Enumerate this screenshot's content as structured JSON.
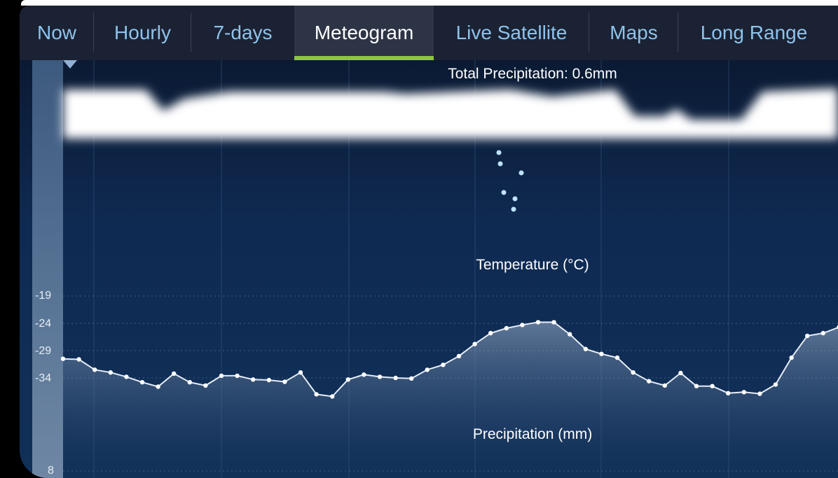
{
  "tabs": [
    {
      "label": "Now",
      "active": false
    },
    {
      "label": "Hourly",
      "active": false
    },
    {
      "label": "7-days",
      "active": false
    },
    {
      "label": "Meteogram",
      "active": true
    },
    {
      "label": "Live Satellite",
      "active": false
    },
    {
      "label": "Maps",
      "active": false
    },
    {
      "label": "Long Range",
      "active": false
    }
  ],
  "meteogram": {
    "precip_total_label": "Total Precipitation: 0.6mm",
    "temperature_label": "Temperature (°C)",
    "precipitation_label": "Precipitation (mm)",
    "axis_ticks": [
      "-19",
      "-24",
      "-29",
      "-34"
    ],
    "precip_axis_tick": "8",
    "colors": {
      "accent": "#8dc63f",
      "tab_text": "#8ec3ec",
      "background": "#103058",
      "line": "#ffffff"
    }
  },
  "chart_data": {
    "type": "line",
    "ylabel": "Temperature (°C)",
    "y_ticks": [
      -19,
      -24,
      -29,
      -34
    ],
    "values": [
      -30.5,
      -30.6,
      -32.5,
      -33,
      -33.8,
      -34.8,
      -35.6,
      -33.2,
      -34.8,
      -35.4,
      -33.6,
      -33.6,
      -34.3,
      -34.4,
      -34.7,
      -33,
      -37,
      -37.4,
      -34.3,
      -33.4,
      -33.8,
      -34,
      -34.1,
      -32.5,
      -31.6,
      -30,
      -27.8,
      -25.8,
      -24.9,
      -24.3,
      -23.8,
      -23.8,
      -26,
      -28.7,
      -29.6,
      -30.3,
      -33,
      -34.6,
      -35.4,
      -33.1,
      -35.5,
      -35.5,
      -36.8,
      -36.6,
      -36.9,
      -35.2,
      -30.3,
      -26.3,
      -25.8,
      -24.7
    ]
  }
}
